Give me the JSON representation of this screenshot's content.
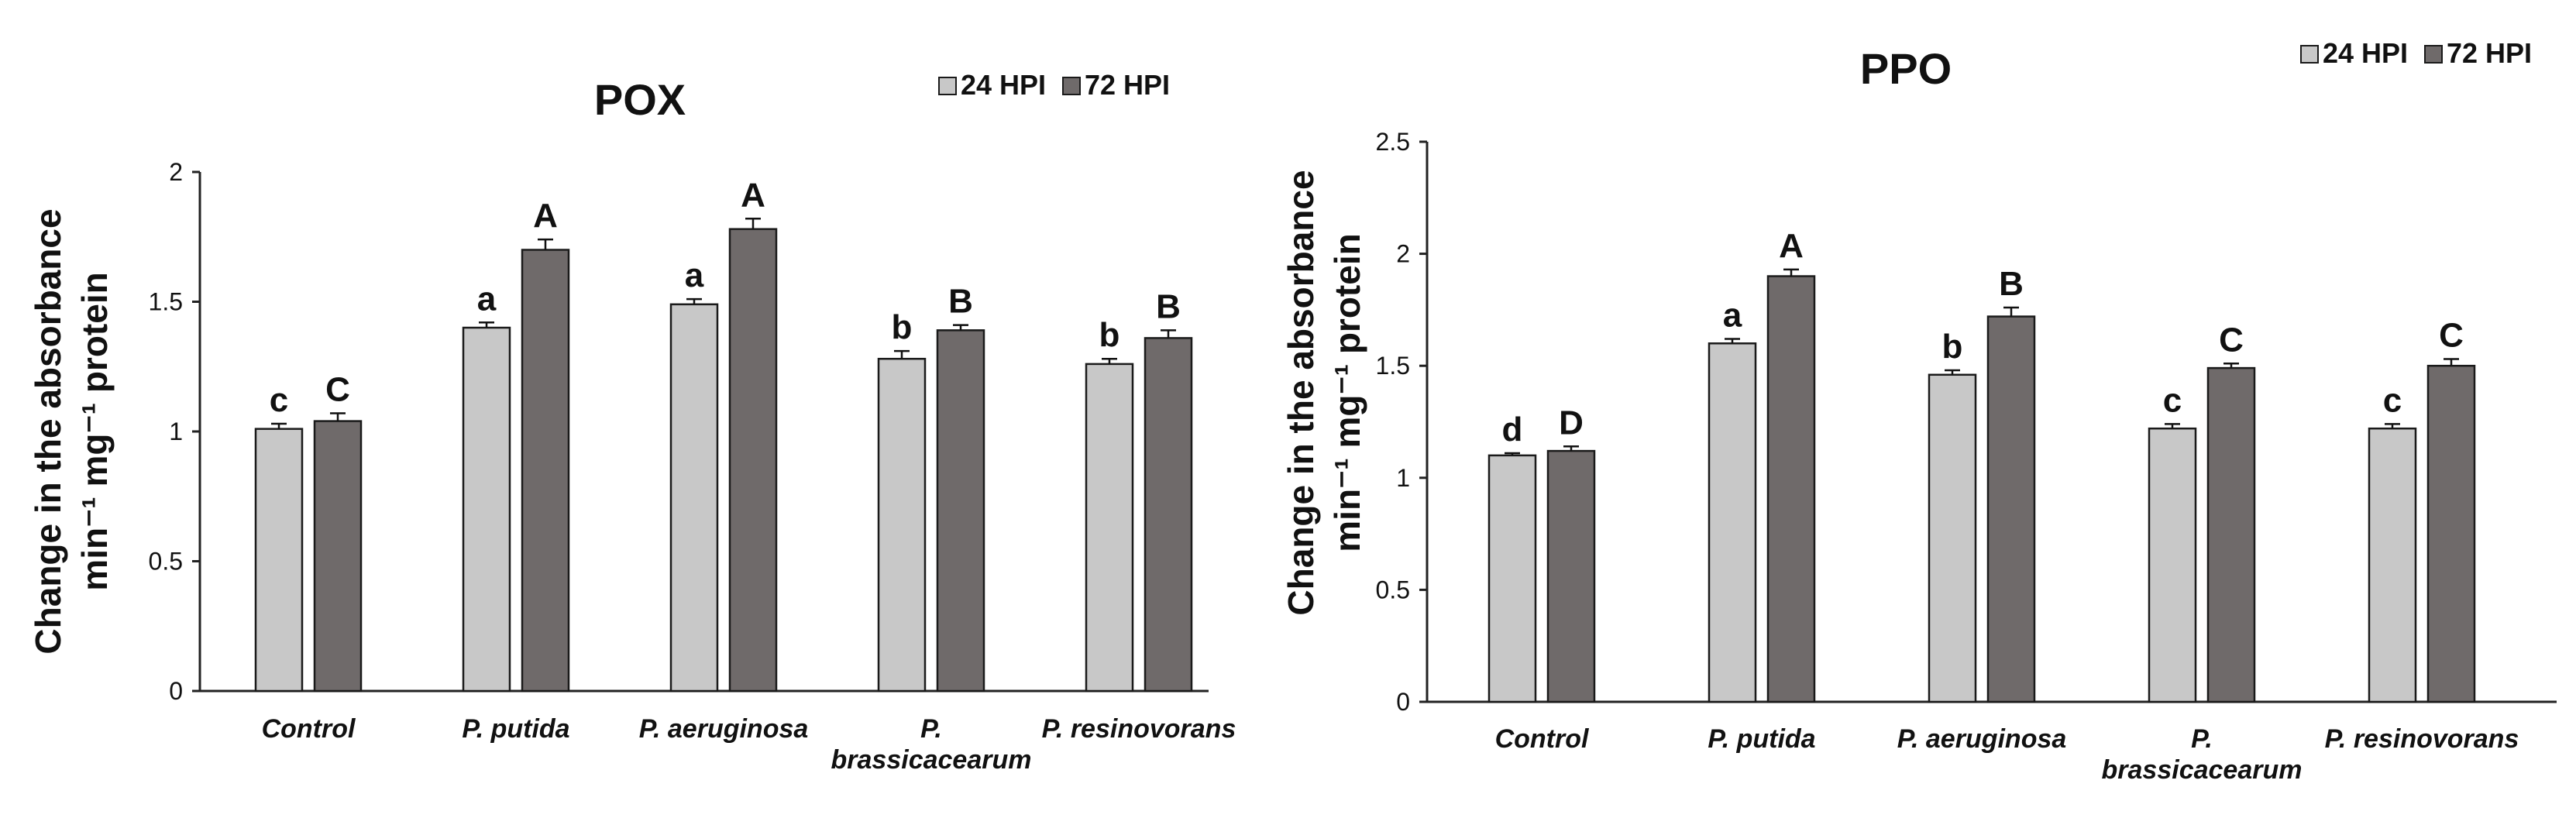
{
  "chart_data": [
    {
      "type": "bar",
      "title": "POX",
      "ylabel_lines": [
        "Change in the absorbance",
        "min⁻¹ mg⁻¹ protein"
      ],
      "xlabel": "",
      "categories": [
        [
          "Control"
        ],
        [
          "P. putida"
        ],
        [
          "P. aeruginosa"
        ],
        [
          "P.",
          "brassicacearum"
        ],
        [
          "P. resinovorans"
        ]
      ],
      "ylim": [
        0,
        2
      ],
      "yticks": [
        0,
        0.5,
        1,
        1.5,
        2
      ],
      "tick_labels": [
        "0",
        "0.5",
        "1",
        "1.5",
        "2"
      ],
      "grid": false,
      "legend_position": "top-right",
      "series": [
        {
          "name": "24 HPI",
          "color": "#c8c8c8",
          "values": [
            1.01,
            1.4,
            1.49,
            1.28,
            1.26
          ],
          "errors": [
            0.02,
            0.02,
            0.02,
            0.03,
            0.02
          ],
          "letters": [
            "c",
            "a",
            "a",
            "b",
            "b"
          ]
        },
        {
          "name": "72 HPI",
          "color": "#6f6a6a",
          "values": [
            1.04,
            1.7,
            1.78,
            1.39,
            1.36
          ],
          "errors": [
            0.03,
            0.04,
            0.04,
            0.02,
            0.03
          ],
          "letters": [
            "C",
            "A",
            "A",
            "B",
            "B"
          ]
        }
      ]
    },
    {
      "type": "bar",
      "title": "PPO",
      "ylabel_lines": [
        "Change in the absorbance",
        "min⁻¹ mg⁻¹ protein"
      ],
      "xlabel": "",
      "categories": [
        [
          "Control"
        ],
        [
          "P. putida"
        ],
        [
          "P. aeruginosa"
        ],
        [
          "P.",
          "brassicacearum"
        ],
        [
          "P. resinovorans"
        ]
      ],
      "ylim": [
        0,
        2.5
      ],
      "yticks": [
        0,
        0.5,
        1,
        1.5,
        2,
        2.5
      ],
      "tick_labels": [
        "0",
        "0.5",
        "1",
        "1.5",
        "2",
        "2.5"
      ],
      "grid": false,
      "legend_position": "top-right",
      "series": [
        {
          "name": "24 HPI",
          "color": "#c8c8c8",
          "values": [
            1.1,
            1.6,
            1.46,
            1.22,
            1.22
          ],
          "errors": [
            0.01,
            0.02,
            0.02,
            0.02,
            0.02
          ],
          "letters": [
            "d",
            "a",
            "b",
            "c",
            "c"
          ]
        },
        {
          "name": "72 HPI",
          "color": "#6f6a6a",
          "values": [
            1.12,
            1.9,
            1.72,
            1.49,
            1.5
          ],
          "errors": [
            0.02,
            0.03,
            0.04,
            0.02,
            0.03
          ],
          "letters": [
            "D",
            "A",
            "B",
            "C",
            "C"
          ]
        }
      ]
    }
  ]
}
